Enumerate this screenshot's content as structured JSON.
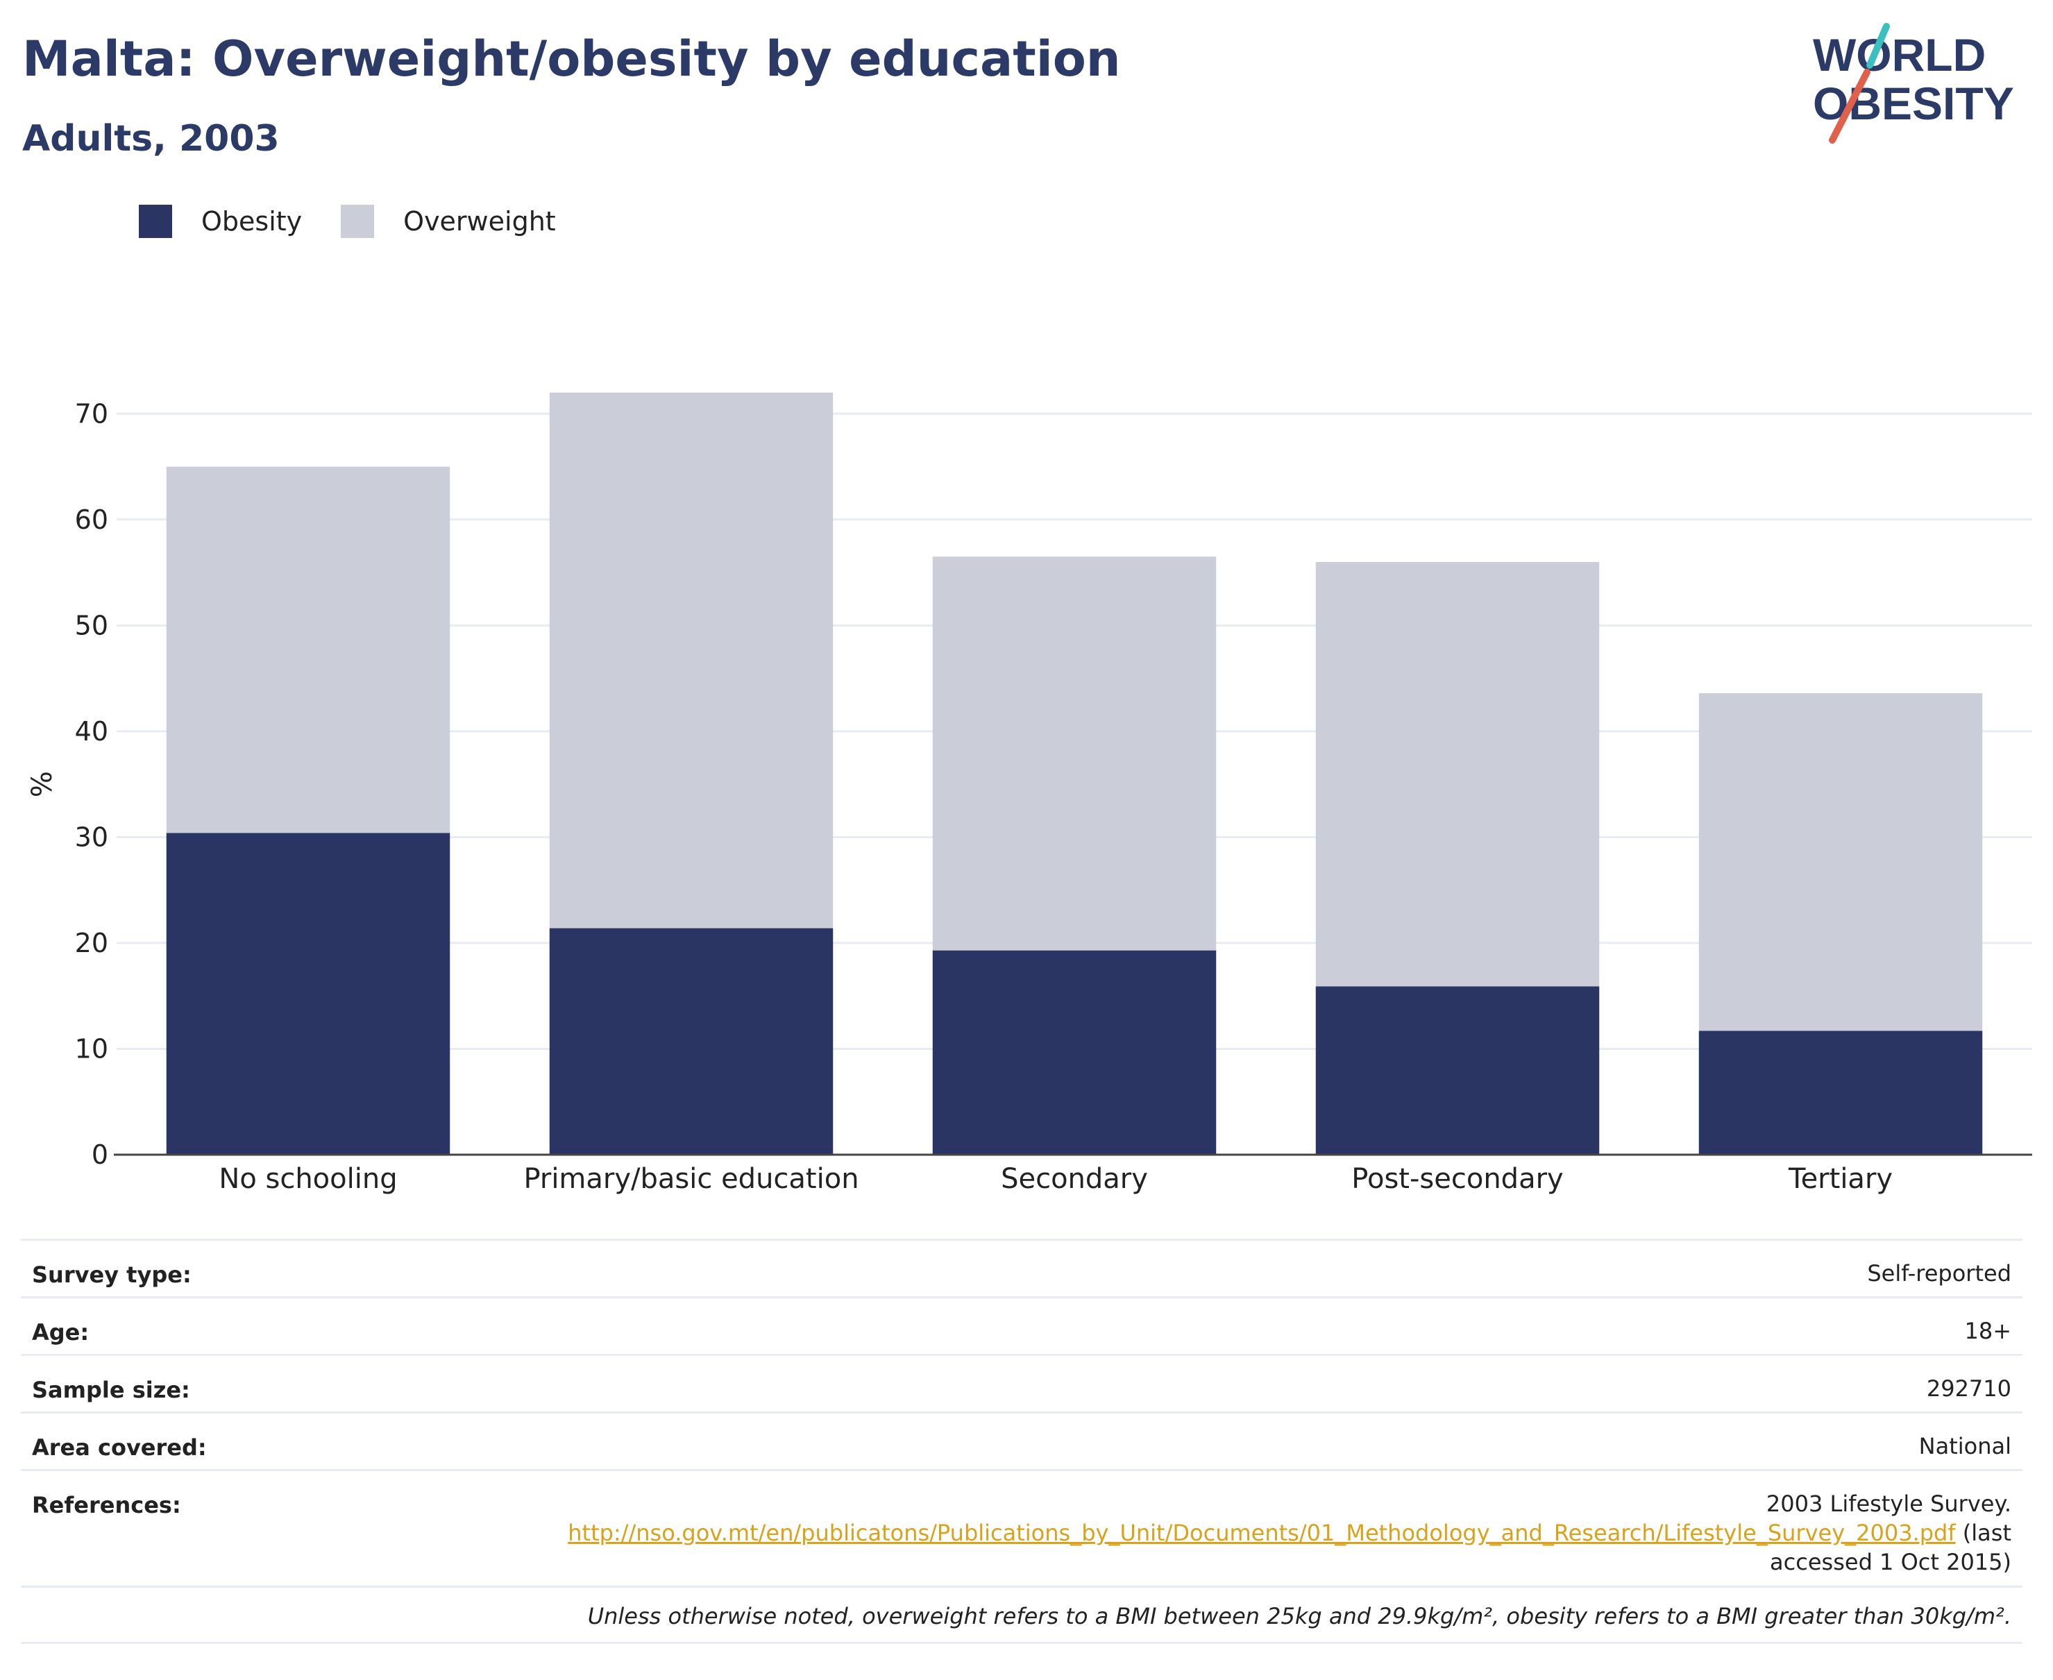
{
  "header": {
    "title": "Malta: Overweight/obesity by education",
    "subtitle": "Adults, 2003"
  },
  "logo": {
    "line1": "WORLD",
    "line2": "OBESITY",
    "color_text": "#2b3a67",
    "color_accent_teal": "#3bbfbf",
    "color_accent_red": "#e0604c"
  },
  "legend": {
    "obesity_label": "Obesity",
    "overweight_label": "Overweight",
    "placement": "top-left"
  },
  "colors": {
    "obesity": "#2b3563",
    "overweight": "#cbcdd8",
    "grid": "#e8ebf0",
    "axis": "#444444",
    "link": "#d9a21b"
  },
  "chart_data": {
    "type": "bar",
    "stacked": true,
    "categories": [
      "No schooling",
      "Primary/basic education",
      "Secondary",
      "Post-secondary",
      "Tertiary"
    ],
    "series": [
      {
        "name": "Obesity",
        "values": [
          30.4,
          21.4,
          19.3,
          15.9,
          11.7
        ]
      },
      {
        "name": "Overweight",
        "values": [
          34.6,
          50.6,
          37.2,
          40.1,
          31.9
        ]
      }
    ],
    "totals": [
      65.0,
      72.0,
      56.5,
      56.0,
      43.6
    ],
    "ylabel": "%",
    "xlabel": "",
    "ylim": [
      0,
      75
    ],
    "yticks": [
      0,
      10,
      20,
      30,
      40,
      50,
      60,
      70
    ],
    "grid": true
  },
  "info": {
    "survey_type_label": "Survey type:",
    "survey_type_value": "Self-reported",
    "age_label": "Age:",
    "age_value": "18+",
    "sample_size_label": "Sample size:",
    "sample_size_value": "292710",
    "area_label": "Area covered:",
    "area_value": "National",
    "references_label": "References:",
    "references_line1": "2003 Lifestyle Survey.",
    "references_link": "http://nso.gov.mt/en/publicatons/Publications_by_Unit/Documents/01_Methodology_and_Research/Lifestyle_Survey_2003.pdf",
    "references_after_link": " (last",
    "references_line3": "accessed 1 Oct 2015)"
  },
  "footnote": "Unless otherwise noted, overweight refers to a BMI between 25kg and 29.9kg/m², obesity refers to a BMI greater than 30kg/m²."
}
